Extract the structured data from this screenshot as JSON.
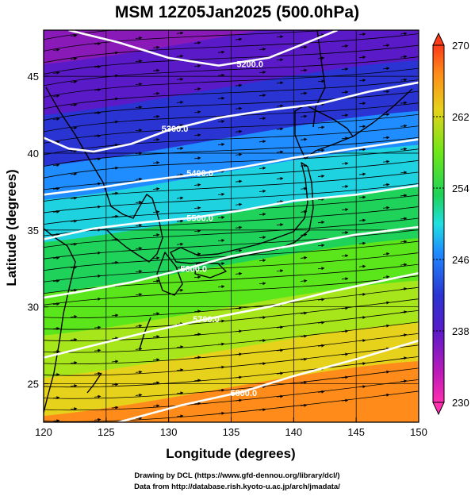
{
  "title": "MSM 12Z05Jan2025 (500.0hPa)",
  "xlabel": "Longitude (degrees)",
  "ylabel": "Latitude  (degrees)",
  "x_ticks": [
    120,
    125,
    130,
    135,
    140,
    145,
    150
  ],
  "x_tick_labels": [
    "120",
    "125",
    "130",
    "135",
    "140",
    "145",
    "150"
  ],
  "y_ticks": [
    25,
    30,
    35,
    40,
    45
  ],
  "y_tick_labels": [
    "25",
    "30",
    "35",
    "40",
    "45"
  ],
  "xlim": [
    120,
    150
  ],
  "ylim": [
    22.5,
    48
  ],
  "colorbar": {
    "range": [
      230,
      270
    ],
    "ticks": [
      "270",
      "262",
      "254",
      "246",
      "238",
      "230"
    ],
    "colors": [
      "#ff3a1a",
      "#ff8c1a",
      "#e6d21a",
      "#7ce61a",
      "#1fd25a",
      "#1fe0e0",
      "#1f8cff",
      "#2a3cd2",
      "#6a1ac8",
      "#b41ab4",
      "#ff1aa0"
    ]
  },
  "chart_data": {
    "type": "map",
    "title": "MSM 12Z05Jan2025 (500.0hPa)",
    "field": "temperature (shaded, K) with geopotential height contours and wind streamlines",
    "contours": [
      {
        "label": "5200.0",
        "label_pos": [
          136.5,
          45.8
        ],
        "points": [
          [
            122,
            48
          ],
          [
            126,
            47.2
          ],
          [
            130,
            46.2
          ],
          [
            134,
            45.7
          ],
          [
            138,
            46.2
          ],
          [
            142,
            47.5
          ],
          [
            143.5,
            48
          ]
        ]
      },
      {
        "label": "5300.0",
        "label_pos": [
          130.5,
          41.6
        ],
        "points": [
          [
            120,
            41
          ],
          [
            122,
            40.3
          ],
          [
            124,
            40.1
          ],
          [
            127,
            40.6
          ],
          [
            130,
            41.5
          ],
          [
            134,
            42.3
          ],
          [
            138,
            42.8
          ],
          [
            142,
            43.2
          ],
          [
            146,
            44
          ],
          [
            150,
            44.6
          ]
        ]
      },
      {
        "label": "5400.0",
        "label_pos": [
          132.5,
          38.7
        ],
        "points": [
          [
            120,
            37.3
          ],
          [
            124,
            37.7
          ],
          [
            128,
            38.2
          ],
          [
            132,
            38.6
          ],
          [
            136,
            39.1
          ],
          [
            140,
            39.7
          ],
          [
            144,
            40.2
          ],
          [
            150,
            40.9
          ]
        ]
      },
      {
        "label": "5500.0",
        "label_pos": [
          132.5,
          35.8
        ],
        "points": [
          [
            120,
            34.4
          ],
          [
            124,
            35.1
          ],
          [
            128,
            35.5
          ],
          [
            132,
            35.8
          ],
          [
            136,
            36.3
          ],
          [
            140,
            36.9
          ],
          [
            145,
            37.3
          ],
          [
            150,
            37.9
          ]
        ]
      },
      {
        "label": "5600.0",
        "label_pos": [
          132.0,
          32.5
        ],
        "points": [
          [
            120,
            30.6
          ],
          [
            123,
            31
          ],
          [
            127,
            31.6
          ],
          [
            131,
            32.4
          ],
          [
            135,
            33.3
          ],
          [
            140,
            34
          ],
          [
            145,
            34.7
          ],
          [
            150,
            35.2
          ]
        ]
      },
      {
        "label": "5700.0",
        "label_pos": [
          133.0,
          29.2
        ],
        "points": [
          [
            120,
            26.7
          ],
          [
            124,
            27.5
          ],
          [
            128,
            28.3
          ],
          [
            133,
            29.2
          ],
          [
            138,
            30
          ],
          [
            143,
            31
          ],
          [
            150,
            32.2
          ]
        ]
      },
      {
        "label": "5800.0",
        "label_pos": [
          136.0,
          24.4
        ],
        "points": [
          [
            121,
            21
          ],
          [
            126,
            22.5
          ],
          [
            131,
            23.6
          ],
          [
            136,
            24.5
          ],
          [
            140,
            25.5
          ],
          [
            145,
            26.6
          ],
          [
            150,
            27.8
          ]
        ]
      }
    ]
  },
  "credit_line1": "Drawing by DCL (https://www.gfd-dennou.org/library/dcl/)",
  "credit_line2": "Data from http://database.rish.kyoto-u.ac.jp/arch/jmadata/"
}
